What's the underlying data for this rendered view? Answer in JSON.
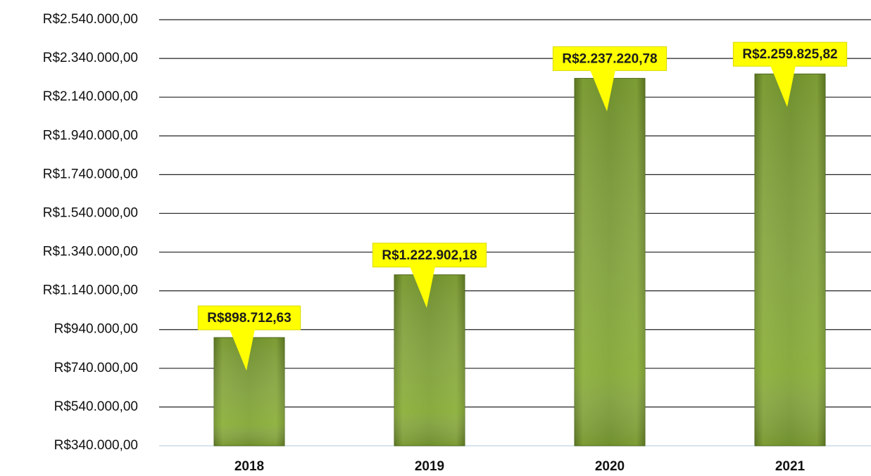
{
  "chart_data": {
    "type": "bar",
    "categories": [
      "2018",
      "2019",
      "2020",
      "2021"
    ],
    "values": [
      898712.63,
      1222902.18,
      2237220.78,
      2259825.82
    ],
    "value_labels": [
      "R$898.712,63",
      "R$1.222.902,18",
      "R$2.237.220,78",
      "R$2.259.825,82"
    ],
    "color": "#6f8f2c",
    "ylim": [
      340000,
      2540000
    ],
    "yticks": [
      {
        "value": 340000,
        "label": "R$340.000,00"
      },
      {
        "value": 540000,
        "label": "R$540.000,00"
      },
      {
        "value": 740000,
        "label": "R$740.000,00"
      },
      {
        "value": 940000,
        "label": "R$940.000,00"
      },
      {
        "value": 1140000,
        "label": "R$1.140.000,00"
      },
      {
        "value": 1340000,
        "label": "R$1.340.000,00"
      },
      {
        "value": 1540000,
        "label": "R$1.540.000,00"
      },
      {
        "value": 1740000,
        "label": "R$1.740.000,00"
      },
      {
        "value": 1940000,
        "label": "R$1.940.000,00"
      },
      {
        "value": 2140000,
        "label": "R$2.140.000,00"
      },
      {
        "value": 2340000,
        "label": "R$2.340.000,00"
      },
      {
        "value": 2540000,
        "label": "R$2.540.000,00"
      }
    ],
    "grid": true
  }
}
